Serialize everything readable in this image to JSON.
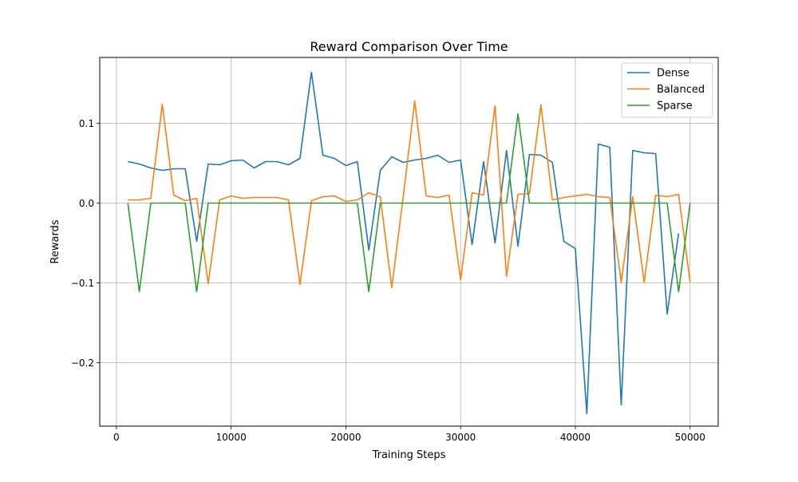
{
  "chart_data": {
    "type": "line",
    "title": "Reward Comparison Over Time",
    "xlabel": "Training Steps",
    "ylabel": "Rewards",
    "xlim": [
      -1450,
      52450
    ],
    "ylim": [
      -0.2795,
      0.1825
    ],
    "xticks": [
      0,
      10000,
      20000,
      30000,
      40000,
      50000
    ],
    "xtick_labels": [
      "0",
      "10000",
      "20000",
      "30000",
      "40000",
      "50000"
    ],
    "yticks": [
      -0.2,
      -0.1,
      0.0,
      0.1
    ],
    "ytick_labels": [
      "−0.2",
      "−0.1",
      "0.0",
      "0.1"
    ],
    "grid": true,
    "legend_position": "top-right",
    "x": [
      1000,
      2000,
      3000,
      4000,
      5000,
      6000,
      7000,
      8000,
      9000,
      10000,
      11000,
      12000,
      13000,
      14000,
      15000,
      16000,
      17000,
      18000,
      19000,
      20000,
      21000,
      22000,
      23000,
      24000,
      25000,
      26000,
      27000,
      28000,
      29000,
      30000,
      31000,
      32000,
      33000,
      34000,
      35000,
      36000,
      37000,
      38000,
      39000,
      40000,
      41000,
      42000,
      43000,
      44000,
      45000,
      46000,
      47000,
      48000,
      49000,
      50000
    ],
    "series": [
      {
        "name": "Dense",
        "color": "#1f77b4",
        "values": [
          0.052,
          0.049,
          0.044,
          0.041,
          0.043,
          0.043,
          -0.048,
          0.049,
          0.048,
          0.053,
          0.054,
          0.044,
          0.052,
          0.052,
          0.048,
          0.056,
          0.164,
          0.06,
          0.056,
          0.047,
          0.052,
          -0.059,
          0.041,
          0.058,
          0.051,
          0.054,
          0.056,
          0.06,
          0.051,
          0.054,
          -0.052,
          0.052,
          -0.05,
          0.066,
          -0.054,
          0.061,
          0.06,
          0.051,
          -0.048,
          -0.057,
          -0.264,
          0.074,
          0.07,
          -0.253,
          0.066,
          0.063,
          0.062,
          -0.139,
          -0.038,
          null
        ]
      },
      {
        "name": "Balanced",
        "color": "#ff7f0e",
        "values": [
          0.004,
          0.004,
          0.006,
          0.124,
          0.01,
          0.003,
          0.006,
          -0.101,
          0.004,
          0.009,
          0.006,
          0.007,
          0.007,
          0.007,
          0.004,
          -0.102,
          0.003,
          0.008,
          0.009,
          0.002,
          0.004,
          0.013,
          0.008,
          -0.106,
          0.008,
          0.128,
          0.009,
          0.007,
          0.01,
          -0.096,
          0.013,
          0.01,
          0.122,
          -0.092,
          0.011,
          0.012,
          0.123,
          0.004,
          0.007,
          0.009,
          0.011,
          0.008,
          0.007,
          -0.099,
          0.008,
          -0.099,
          0.01,
          0.008,
          0.011,
          -0.099
        ]
      },
      {
        "name": "Sparse",
        "color": "#2ca02c",
        "values": [
          0.0,
          -0.111,
          0.0,
          0.0,
          0.0,
          0.0,
          -0.111,
          0.0,
          0.0,
          0.0,
          0.0,
          0.0,
          0.0,
          0.0,
          0.0,
          0.0,
          0.0,
          0.0,
          0.0,
          0.0,
          0.0,
          -0.111,
          0.0,
          0.0,
          0.0,
          0.0,
          0.0,
          0.0,
          0.0,
          0.0,
          0.0,
          0.0,
          0.0,
          0.0,
          0.112,
          0.0,
          0.0,
          0.0,
          0.0,
          0.0,
          0.0,
          0.0,
          0.0,
          0.0,
          0.0,
          0.0,
          0.0,
          0.0,
          -0.111,
          0.0
        ]
      }
    ]
  }
}
